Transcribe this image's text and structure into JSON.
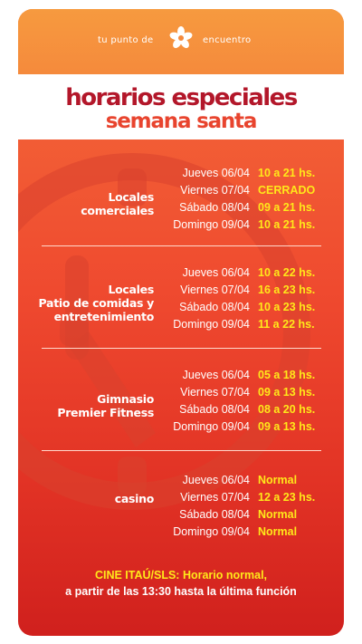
{
  "header": {
    "tagline_left": "tu punto de",
    "tagline_right": "encuentro",
    "brand_color": "#f58a3c"
  },
  "title": {
    "line1": "horarios especiales",
    "line2": "semana santa"
  },
  "sections": [
    {
      "category": [
        "Locales",
        "comerciales"
      ],
      "rows": [
        {
          "day": "Jueves 06/04",
          "hours": "10 a 21 hs."
        },
        {
          "day": "Viernes 07/04",
          "hours": "CERRADO"
        },
        {
          "day": "Sábado 08/04",
          "hours": "09 a 21 hs."
        },
        {
          "day": "Domingo 09/04",
          "hours": "10 a 21 hs."
        }
      ]
    },
    {
      "category": [
        "Locales",
        "Patio de comidas y",
        "entretenimiento"
      ],
      "rows": [
        {
          "day": "Jueves 06/04",
          "hours": "10 a 22 hs."
        },
        {
          "day": "Viernes 07/04",
          "hours": "16 a 23 hs."
        },
        {
          "day": "Sábado 08/04",
          "hours": "10 a 23 hs."
        },
        {
          "day": "Domingo 09/04",
          "hours": "11 a 22 hs."
        }
      ]
    },
    {
      "category": [
        "Gimnasio",
        "Premier Fitness"
      ],
      "rows": [
        {
          "day": "Jueves 06/04",
          "hours": "05 a 18 hs."
        },
        {
          "day": "Viernes 07/04",
          "hours": "09 a 13 hs."
        },
        {
          "day": "Sábado 08/04",
          "hours": "08 a 20 hs."
        },
        {
          "day": "Domingo 09/04",
          "hours": "09 a 13 hs."
        }
      ]
    },
    {
      "category": [
        "casino"
      ],
      "rows": [
        {
          "day": "Jueves 06/04",
          "hours": "Normal"
        },
        {
          "day": "Viernes 07/04",
          "hours": "12 a 23 hs."
        },
        {
          "day": "Sábado 08/04",
          "hours": "Normal"
        },
        {
          "day": "Domingo 09/04",
          "hours": "Normal"
        }
      ]
    }
  ],
  "footer": {
    "line1": "CINE ITAÚ/SLS: Horario normal,",
    "line2": "a partir de las 13:30 hasta la última función"
  }
}
